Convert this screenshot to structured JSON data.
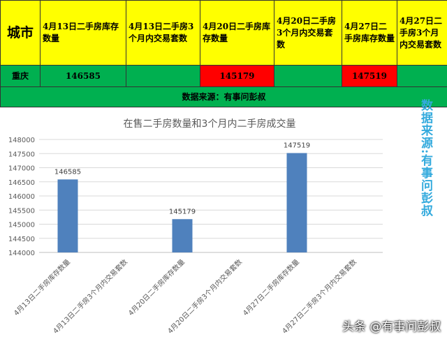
{
  "table": {
    "headers": [
      "城市",
      "4月13日二手房库存数量",
      "4月13日二手房3个月内交易套数",
      "4月20日二手房库存数量",
      "4月20日二手房3个月内交易套数",
      "4月27日二手房库存数量",
      "4月27日二手房3个月内交易套数"
    ],
    "row": [
      "重庆",
      "146585",
      "",
      "145179",
      "",
      "147519",
      ""
    ],
    "source": "数据来源：有事问彭叔"
  },
  "side_note": "数据来源:有事问彭叔",
  "watermark": "头条 @有事问彭叔",
  "colors": {
    "bar": "#4f81bd",
    "header": "#ffff00",
    "green": "#00b050",
    "red": "#ff0000",
    "side_note": "#33aadd"
  },
  "chart_data": {
    "type": "bar",
    "title": "在售二手房数量和3个月内二手房成交量",
    "categories": [
      "4月13日二手房库存数量",
      "4月13日二手房3个月内交易套数",
      "4月20日二手房库存数量",
      "4月20日二手房3个月内交易套数",
      "4月27日二手房库存数量",
      "4月27日二手房3个月内交易套数"
    ],
    "values": [
      146585,
      null,
      145179,
      null,
      147519,
      null
    ],
    "data_labels": [
      "146585",
      "",
      "145179",
      "",
      "147519",
      ""
    ],
    "ylim": [
      144000,
      148000
    ],
    "yticks": [
      144000,
      144500,
      145000,
      145500,
      146000,
      146500,
      147000,
      147500,
      148000
    ],
    "grid": true,
    "legend": "none"
  }
}
